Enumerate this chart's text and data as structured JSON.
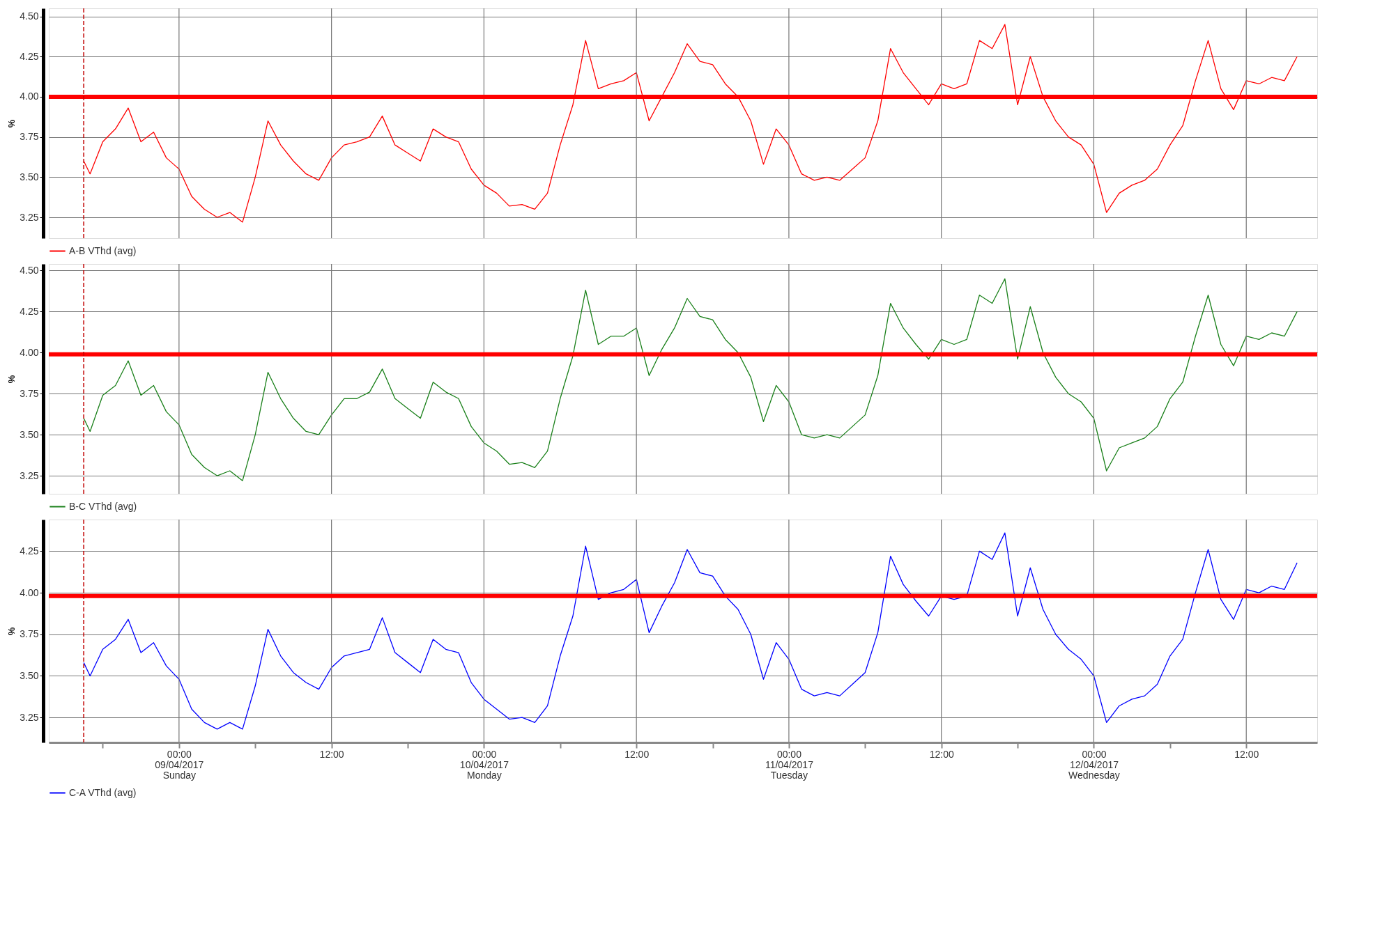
{
  "chart_data": [
    {
      "type": "line",
      "ylabel": "%",
      "legend": "bottom",
      "grid": true,
      "tick_labels": "y",
      "x": [
        "2017-04-08T16:30",
        "2017-04-08T17:00",
        "2017-04-08T18:00",
        "2017-04-08T19:00",
        "2017-04-08T20:00",
        "2017-04-08T21:00",
        "2017-04-08T22:00",
        "2017-04-08T23:00",
        "2017-04-09T00:00",
        "2017-04-09T01:00",
        "2017-04-09T02:00",
        "2017-04-09T03:00",
        "2017-04-09T04:00",
        "2017-04-09T05:00",
        "2017-04-09T06:00",
        "2017-04-09T07:00",
        "2017-04-09T08:00",
        "2017-04-09T09:00",
        "2017-04-09T10:00",
        "2017-04-09T11:00",
        "2017-04-09T12:00",
        "2017-04-09T13:00",
        "2017-04-09T14:00",
        "2017-04-09T15:00",
        "2017-04-09T16:00",
        "2017-04-09T17:00",
        "2017-04-09T18:00",
        "2017-04-09T19:00",
        "2017-04-09T20:00",
        "2017-04-09T21:00",
        "2017-04-09T22:00",
        "2017-04-09T23:00",
        "2017-04-10T00:00",
        "2017-04-10T01:00",
        "2017-04-10T02:00",
        "2017-04-10T03:00",
        "2017-04-10T04:00",
        "2017-04-10T05:00",
        "2017-04-10T06:00",
        "2017-04-10T07:00",
        "2017-04-10T08:00",
        "2017-04-10T09:00",
        "2017-04-10T10:00",
        "2017-04-10T11:00",
        "2017-04-10T12:00",
        "2017-04-10T13:00",
        "2017-04-10T14:00",
        "2017-04-10T15:00",
        "2017-04-10T16:00",
        "2017-04-10T17:00",
        "2017-04-10T18:00",
        "2017-04-10T19:00",
        "2017-04-10T20:00",
        "2017-04-10T21:00",
        "2017-04-10T22:00",
        "2017-04-10T23:00",
        "2017-04-11T00:00",
        "2017-04-11T01:00",
        "2017-04-11T02:00",
        "2017-04-11T03:00",
        "2017-04-11T04:00",
        "2017-04-11T05:00",
        "2017-04-11T06:00",
        "2017-04-11T07:00",
        "2017-04-11T08:00",
        "2017-04-11T09:00",
        "2017-04-11T10:00",
        "2017-04-11T11:00",
        "2017-04-11T12:00",
        "2017-04-11T13:00",
        "2017-04-11T14:00",
        "2017-04-11T15:00",
        "2017-04-11T16:00",
        "2017-04-11T17:00",
        "2017-04-11T18:00",
        "2017-04-11T19:00",
        "2017-04-11T20:00",
        "2017-04-11T21:00",
        "2017-04-11T22:00",
        "2017-04-11T23:00",
        "2017-04-12T00:00",
        "2017-04-12T01:00",
        "2017-04-12T02:00",
        "2017-04-12T03:00",
        "2017-04-12T04:00",
        "2017-04-12T05:00",
        "2017-04-12T06:00",
        "2017-04-12T07:00",
        "2017-04-12T08:00",
        "2017-04-12T09:00",
        "2017-04-12T10:00",
        "2017-04-12T11:00",
        "2017-04-12T12:00",
        "2017-04-12T13:00",
        "2017-04-12T14:00",
        "2017-04-12T15:00",
        "2017-04-12T16:00"
      ],
      "xlim": [
        "2017-04-08T13:45",
        "2017-04-12T17:35"
      ],
      "ylim": [
        3.12,
        4.55
      ],
      "yticks": [
        {
          "value": 3.25,
          "label": "3.25"
        },
        {
          "value": 3.5,
          "label": "3.50"
        },
        {
          "value": 3.75,
          "label": "3.75"
        },
        {
          "value": 4.0,
          "label": "4.00"
        },
        {
          "value": 4.25,
          "label": "4.25"
        },
        {
          "value": 4.5,
          "label": "4.50"
        }
      ],
      "ref_lines": [
        {
          "axis": "y",
          "value": 4.0,
          "color": "#ff0000",
          "line_style": "solid"
        },
        {
          "axis": "x",
          "value": "2017-04-08T16:30",
          "color": "#c00000",
          "line_style": "dashed"
        }
      ],
      "series": [
        {
          "name": "A-B VThd (avg)",
          "color": "#ff0000",
          "values": [
            3.6,
            3.52,
            3.72,
            3.8,
            3.93,
            3.72,
            3.78,
            3.62,
            3.55,
            3.38,
            3.3,
            3.25,
            3.28,
            3.22,
            3.5,
            3.85,
            3.7,
            3.6,
            3.52,
            3.48,
            3.62,
            3.7,
            3.72,
            3.75,
            3.88,
            3.7,
            3.65,
            3.6,
            3.8,
            3.75,
            3.72,
            3.55,
            3.45,
            3.4,
            3.32,
            3.33,
            3.3,
            3.4,
            3.7,
            3.95,
            4.35,
            4.05,
            4.08,
            4.1,
            4.15,
            3.85,
            4.0,
            4.15,
            4.33,
            4.22,
            4.2,
            4.08,
            4.0,
            3.85,
            3.58,
            3.8,
            3.7,
            3.52,
            3.48,
            3.5,
            3.48,
            3.55,
            3.62,
            3.85,
            4.3,
            4.15,
            4.05,
            3.95,
            4.08,
            4.05,
            4.08,
            4.35,
            4.3,
            4.45,
            3.95,
            4.25,
            4.0,
            3.85,
            3.75,
            3.7,
            3.58,
            3.28,
            3.4,
            3.45,
            3.48,
            3.55,
            3.7,
            3.82,
            4.1,
            4.35,
            4.05,
            3.92,
            4.1,
            4.08,
            4.12,
            4.1,
            4.25
          ]
        }
      ]
    },
    {
      "type": "line",
      "ylabel": "%",
      "legend": "bottom",
      "grid": true,
      "tick_labels": "y",
      "x": [
        "2017-04-08T16:30",
        "2017-04-08T17:00",
        "2017-04-08T18:00",
        "2017-04-08T19:00",
        "2017-04-08T20:00",
        "2017-04-08T21:00",
        "2017-04-08T22:00",
        "2017-04-08T23:00",
        "2017-04-09T00:00",
        "2017-04-09T01:00",
        "2017-04-09T02:00",
        "2017-04-09T03:00",
        "2017-04-09T04:00",
        "2017-04-09T05:00",
        "2017-04-09T06:00",
        "2017-04-09T07:00",
        "2017-04-09T08:00",
        "2017-04-09T09:00",
        "2017-04-09T10:00",
        "2017-04-09T11:00",
        "2017-04-09T12:00",
        "2017-04-09T13:00",
        "2017-04-09T14:00",
        "2017-04-09T15:00",
        "2017-04-09T16:00",
        "2017-04-09T17:00",
        "2017-04-09T18:00",
        "2017-04-09T19:00",
        "2017-04-09T20:00",
        "2017-04-09T21:00",
        "2017-04-09T22:00",
        "2017-04-09T23:00",
        "2017-04-10T00:00",
        "2017-04-10T01:00",
        "2017-04-10T02:00",
        "2017-04-10T03:00",
        "2017-04-10T04:00",
        "2017-04-10T05:00",
        "2017-04-10T06:00",
        "2017-04-10T07:00",
        "2017-04-10T08:00",
        "2017-04-10T09:00",
        "2017-04-10T10:00",
        "2017-04-10T11:00",
        "2017-04-10T12:00",
        "2017-04-10T13:00",
        "2017-04-10T14:00",
        "2017-04-10T15:00",
        "2017-04-10T16:00",
        "2017-04-10T17:00",
        "2017-04-10T18:00",
        "2017-04-10T19:00",
        "2017-04-10T20:00",
        "2017-04-10T21:00",
        "2017-04-10T22:00",
        "2017-04-10T23:00",
        "2017-04-11T00:00",
        "2017-04-11T01:00",
        "2017-04-11T02:00",
        "2017-04-11T03:00",
        "2017-04-11T04:00",
        "2017-04-11T05:00",
        "2017-04-11T06:00",
        "2017-04-11T07:00",
        "2017-04-11T08:00",
        "2017-04-11T09:00",
        "2017-04-11T10:00",
        "2017-04-11T11:00",
        "2017-04-11T12:00",
        "2017-04-11T13:00",
        "2017-04-11T14:00",
        "2017-04-11T15:00",
        "2017-04-11T16:00",
        "2017-04-11T17:00",
        "2017-04-11T18:00",
        "2017-04-11T19:00",
        "2017-04-11T20:00",
        "2017-04-11T21:00",
        "2017-04-11T22:00",
        "2017-04-11T23:00",
        "2017-04-12T00:00",
        "2017-04-12T01:00",
        "2017-04-12T02:00",
        "2017-04-12T03:00",
        "2017-04-12T04:00",
        "2017-04-12T05:00",
        "2017-04-12T06:00",
        "2017-04-12T07:00",
        "2017-04-12T08:00",
        "2017-04-12T09:00",
        "2017-04-12T10:00",
        "2017-04-12T11:00",
        "2017-04-12T12:00",
        "2017-04-12T13:00",
        "2017-04-12T14:00",
        "2017-04-12T15:00",
        "2017-04-12T16:00"
      ],
      "xlim": [
        "2017-04-08T13:45",
        "2017-04-12T17:35"
      ],
      "ylim": [
        3.14,
        4.54
      ],
      "yticks": [
        {
          "value": 3.25,
          "label": "3.25"
        },
        {
          "value": 3.5,
          "label": "3.50"
        },
        {
          "value": 3.75,
          "label": "3.75"
        },
        {
          "value": 4.0,
          "label": "4.00"
        },
        {
          "value": 4.25,
          "label": "4.25"
        },
        {
          "value": 4.5,
          "label": "4.50"
        }
      ],
      "ref_lines": [
        {
          "axis": "y",
          "value": 3.99,
          "color": "#ff0000",
          "line_style": "solid"
        },
        {
          "axis": "x",
          "value": "2017-04-08T16:30",
          "color": "#c00000",
          "line_style": "dashed"
        }
      ],
      "series": [
        {
          "name": "B-C VThd (avg)",
          "color": "#1a801a",
          "values": [
            3.6,
            3.52,
            3.74,
            3.8,
            3.95,
            3.74,
            3.8,
            3.64,
            3.56,
            3.38,
            3.3,
            3.25,
            3.28,
            3.22,
            3.5,
            3.88,
            3.72,
            3.6,
            3.52,
            3.5,
            3.62,
            3.72,
            3.72,
            3.76,
            3.9,
            3.72,
            3.66,
            3.6,
            3.82,
            3.76,
            3.72,
            3.55,
            3.45,
            3.4,
            3.32,
            3.33,
            3.3,
            3.4,
            3.72,
            3.98,
            4.38,
            4.05,
            4.1,
            4.1,
            4.15,
            3.86,
            4.02,
            4.15,
            4.33,
            4.22,
            4.2,
            4.08,
            4.0,
            3.85,
            3.58,
            3.8,
            3.7,
            3.5,
            3.48,
            3.5,
            3.48,
            3.55,
            3.62,
            3.86,
            4.3,
            4.15,
            4.05,
            3.96,
            4.08,
            4.05,
            4.08,
            4.35,
            4.3,
            4.45,
            3.96,
            4.28,
            4.0,
            3.85,
            3.75,
            3.7,
            3.6,
            3.28,
            3.42,
            3.45,
            3.48,
            3.55,
            3.72,
            3.82,
            4.1,
            4.35,
            4.05,
            3.92,
            4.1,
            4.08,
            4.12,
            4.1,
            4.25
          ]
        }
      ]
    },
    {
      "type": "line",
      "ylabel": "%",
      "legend": "bottom",
      "grid": true,
      "x": [
        "2017-04-08T16:30",
        "2017-04-08T17:00",
        "2017-04-08T18:00",
        "2017-04-08T19:00",
        "2017-04-08T20:00",
        "2017-04-08T21:00",
        "2017-04-08T22:00",
        "2017-04-08T23:00",
        "2017-04-09T00:00",
        "2017-04-09T01:00",
        "2017-04-09T02:00",
        "2017-04-09T03:00",
        "2017-04-09T04:00",
        "2017-04-09T05:00",
        "2017-04-09T06:00",
        "2017-04-09T07:00",
        "2017-04-09T08:00",
        "2017-04-09T09:00",
        "2017-04-09T10:00",
        "2017-04-09T11:00",
        "2017-04-09T12:00",
        "2017-04-09T13:00",
        "2017-04-09T14:00",
        "2017-04-09T15:00",
        "2017-04-09T16:00",
        "2017-04-09T17:00",
        "2017-04-09T18:00",
        "2017-04-09T19:00",
        "2017-04-09T20:00",
        "2017-04-09T21:00",
        "2017-04-09T22:00",
        "2017-04-09T23:00",
        "2017-04-10T00:00",
        "2017-04-10T01:00",
        "2017-04-10T02:00",
        "2017-04-10T03:00",
        "2017-04-10T04:00",
        "2017-04-10T05:00",
        "2017-04-10T06:00",
        "2017-04-10T07:00",
        "2017-04-10T08:00",
        "2017-04-10T09:00",
        "2017-04-10T10:00",
        "2017-04-10T11:00",
        "2017-04-10T12:00",
        "2017-04-10T13:00",
        "2017-04-10T14:00",
        "2017-04-10T15:00",
        "2017-04-10T16:00",
        "2017-04-10T17:00",
        "2017-04-10T18:00",
        "2017-04-10T19:00",
        "2017-04-10T20:00",
        "2017-04-10T21:00",
        "2017-04-10T22:00",
        "2017-04-10T23:00",
        "2017-04-11T00:00",
        "2017-04-11T01:00",
        "2017-04-11T02:00",
        "2017-04-11T03:00",
        "2017-04-11T04:00",
        "2017-04-11T05:00",
        "2017-04-11T06:00",
        "2017-04-11T07:00",
        "2017-04-11T08:00",
        "2017-04-11T09:00",
        "2017-04-11T10:00",
        "2017-04-11T11:00",
        "2017-04-11T12:00",
        "2017-04-11T13:00",
        "2017-04-11T14:00",
        "2017-04-11T15:00",
        "2017-04-11T16:00",
        "2017-04-11T17:00",
        "2017-04-11T18:00",
        "2017-04-11T19:00",
        "2017-04-11T20:00",
        "2017-04-11T21:00",
        "2017-04-11T22:00",
        "2017-04-11T23:00",
        "2017-04-12T00:00",
        "2017-04-12T01:00",
        "2017-04-12T02:00",
        "2017-04-12T03:00",
        "2017-04-12T04:00",
        "2017-04-12T05:00",
        "2017-04-12T06:00",
        "2017-04-12T07:00",
        "2017-04-12T08:00",
        "2017-04-12T09:00",
        "2017-04-12T10:00",
        "2017-04-12T11:00",
        "2017-04-12T12:00",
        "2017-04-12T13:00",
        "2017-04-12T14:00",
        "2017-04-12T15:00",
        "2017-04-12T16:00"
      ],
      "xlim": [
        "2017-04-08T13:45",
        "2017-04-12T17:35"
      ],
      "xticks": [
        {
          "value": "2017-04-08T18:00",
          "label": null
        },
        {
          "value": "2017-04-09T00:00",
          "label": "00:00\n09/04/2017\nSunday"
        },
        {
          "value": "2017-04-09T06:00",
          "label": null
        },
        {
          "value": "2017-04-09T12:00",
          "label": "12:00"
        },
        {
          "value": "2017-04-09T18:00",
          "label": null
        },
        {
          "value": "2017-04-10T00:00",
          "label": "00:00\n10/04/2017\nMonday"
        },
        {
          "value": "2017-04-10T06:00",
          "label": null
        },
        {
          "value": "2017-04-10T12:00",
          "label": "12:00"
        },
        {
          "value": "2017-04-10T18:00",
          "label": null
        },
        {
          "value": "2017-04-11T00:00",
          "label": "00:00\n11/04/2017\nTuesday"
        },
        {
          "value": "2017-04-11T06:00",
          "label": null
        },
        {
          "value": "2017-04-11T12:00",
          "label": "12:00"
        },
        {
          "value": "2017-04-11T18:00",
          "label": null
        },
        {
          "value": "2017-04-12T00:00",
          "label": "00:00\n12/04/2017\nWednesday"
        },
        {
          "value": "2017-04-12T06:00",
          "label": null
        },
        {
          "value": "2017-04-12T12:00",
          "label": "12:00"
        }
      ],
      "ylim": [
        3.1,
        4.44
      ],
      "yticks": [
        {
          "value": 3.25,
          "label": "3.25"
        },
        {
          "value": 3.5,
          "label": "3.50"
        },
        {
          "value": 3.75,
          "label": "3.75"
        },
        {
          "value": 4.0,
          "label": "4.00"
        },
        {
          "value": 4.25,
          "label": "4.25"
        }
      ],
      "ref_lines": [
        {
          "axis": "y",
          "value": 3.98,
          "color": "#ff0000",
          "line_style": "solid"
        },
        {
          "axis": "x",
          "value": "2017-04-08T16:30",
          "color": "#c00000",
          "line_style": "dashed"
        }
      ],
      "series": [
        {
          "name": "C-A VThd (avg)",
          "color": "#0000ff",
          "values": [
            3.58,
            3.5,
            3.66,
            3.72,
            3.84,
            3.64,
            3.7,
            3.56,
            3.48,
            3.3,
            3.22,
            3.18,
            3.22,
            3.18,
            3.44,
            3.78,
            3.62,
            3.52,
            3.46,
            3.42,
            3.55,
            3.62,
            3.64,
            3.66,
            3.85,
            3.64,
            3.58,
            3.52,
            3.72,
            3.66,
            3.64,
            3.46,
            3.36,
            3.3,
            3.24,
            3.25,
            3.22,
            3.32,
            3.62,
            3.86,
            4.28,
            3.96,
            4.0,
            4.02,
            4.08,
            3.76,
            3.92,
            4.06,
            4.26,
            4.12,
            4.1,
            3.98,
            3.9,
            3.75,
            3.48,
            3.7,
            3.6,
            3.42,
            3.38,
            3.4,
            3.38,
            3.45,
            3.52,
            3.76,
            4.22,
            4.05,
            3.95,
            3.86,
            3.98,
            3.96,
            3.98,
            4.25,
            4.2,
            4.36,
            3.86,
            4.15,
            3.9,
            3.75,
            3.66,
            3.6,
            3.5,
            3.22,
            3.32,
            3.36,
            3.38,
            3.45,
            3.62,
            3.72,
            4.0,
            4.26,
            3.96,
            3.84,
            4.02,
            4.0,
            4.04,
            4.02,
            4.18
          ]
        }
      ]
    }
  ]
}
